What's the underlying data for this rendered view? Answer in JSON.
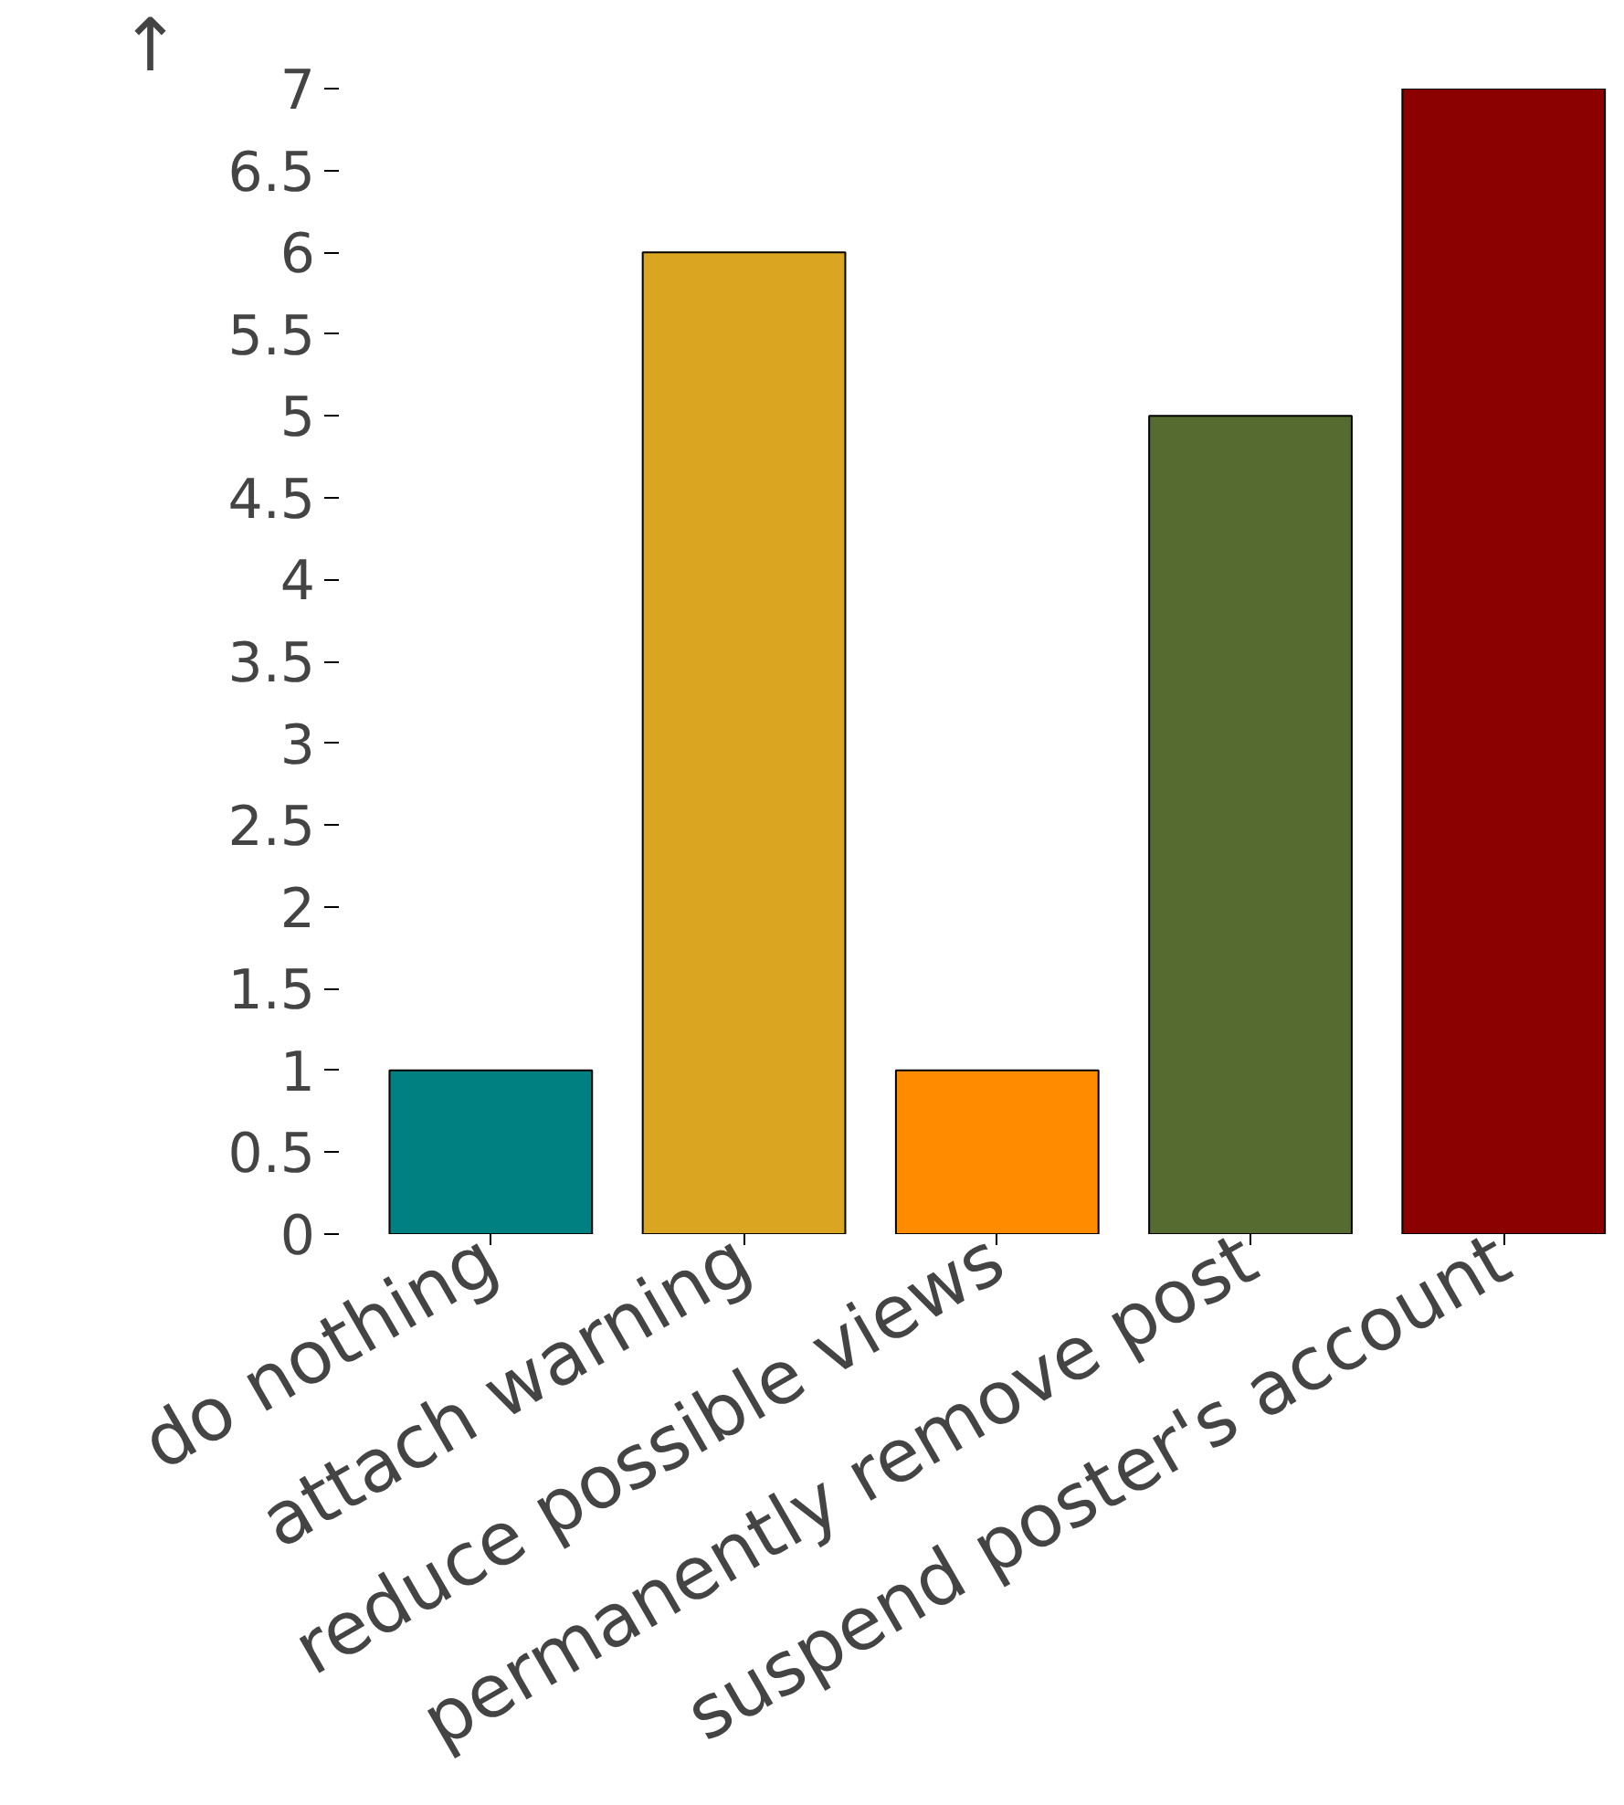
{
  "chart_data": {
    "type": "bar",
    "ylabel": "↑",
    "categories": [
      "do nothing",
      "attach warning",
      "reduce possible views",
      "permanently remove post",
      "suspend poster's account"
    ],
    "values": [
      1,
      6,
      1,
      5,
      7
    ],
    "colors": [
      "#008080",
      "#daa520",
      "#ff8c00",
      "#556b2f",
      "#8b0000"
    ],
    "ylim": [
      0,
      7
    ],
    "yticks": [
      0,
      0.5,
      1,
      1.5,
      2,
      2.5,
      3,
      3.5,
      4,
      4.5,
      5,
      5.5,
      6,
      6.5,
      7
    ],
    "grid": false
  }
}
